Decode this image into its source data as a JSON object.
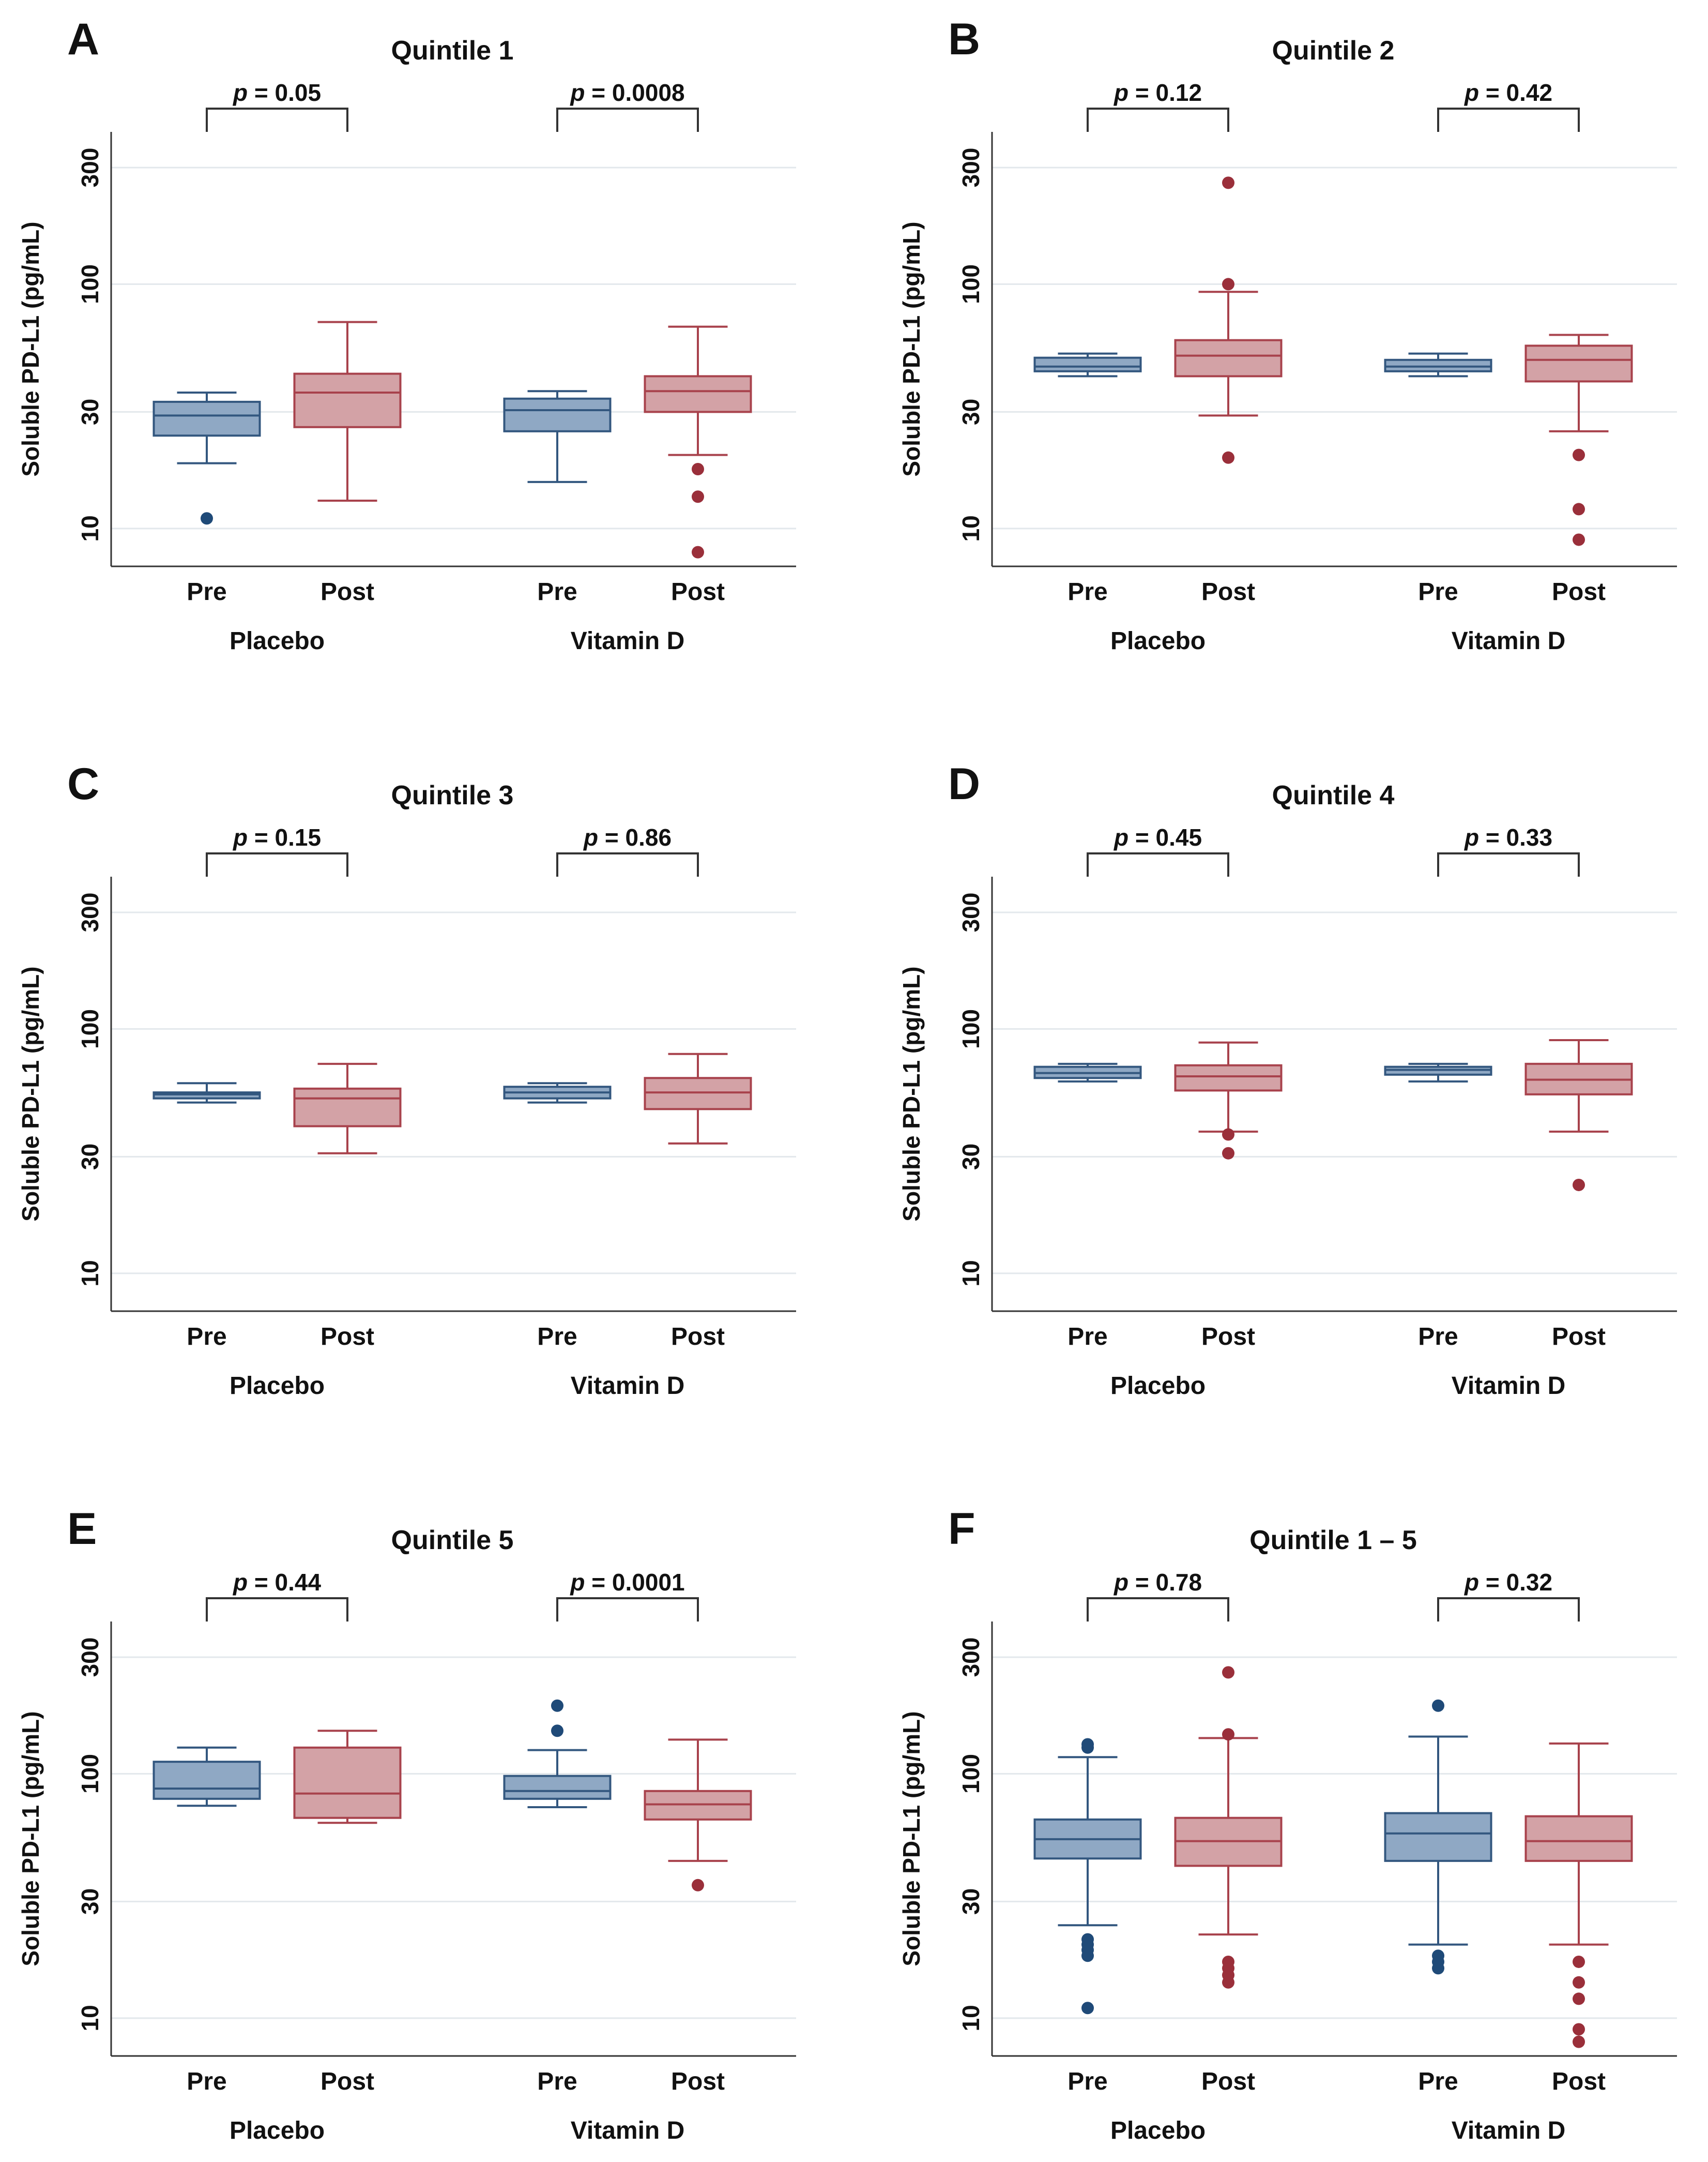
{
  "figure": {
    "ylabel": "Soluble PD-L1 (pg/mL)",
    "yticks": [
      10,
      30,
      100,
      300
    ],
    "colors": {
      "pre_fill": "#8fa8c4",
      "pre_line": "#33577f",
      "pre_point": "#1f4a78",
      "post_fill": "#d3a2a6",
      "post_line": "#a8424c",
      "post_point": "#9a2f3a"
    },
    "box_labels": [
      "Pre",
      "Post",
      "Pre",
      "Post"
    ],
    "group_labels": [
      "Placebo",
      "Vitamin D"
    ]
  },
  "chart_data": [
    {
      "type": "box",
      "panel_label": "A",
      "title": "Quintile 1",
      "ylabel": "Soluble PD-L1 (pg/mL)",
      "yscale": "log",
      "ylim": [
        7,
        420
      ],
      "categories": [
        "Pre",
        "Post",
        "Pre",
        "Post"
      ],
      "groups": [
        "Placebo",
        "Vitamin D"
      ],
      "comparisons": [
        {
          "text": "p = 0.05",
          "label": "p",
          "value": "= 0.05"
        },
        {
          "text": "p = 0.0008",
          "label": "p",
          "value": "= 0.0008"
        }
      ],
      "boxes": [
        {
          "group": "Placebo",
          "time": "Pre",
          "q1": 24,
          "median": 29,
          "q3": 33,
          "whisker_low": 18.5,
          "whisker_high": 36,
          "outliers": [
            11
          ]
        },
        {
          "group": "Placebo",
          "time": "Post",
          "q1": 26,
          "median": 36,
          "q3": 43,
          "whisker_low": 13,
          "whisker_high": 70,
          "outliers": []
        },
        {
          "group": "Vitamin D",
          "time": "Pre",
          "q1": 25,
          "median": 30.5,
          "q3": 34,
          "whisker_low": 15.5,
          "whisker_high": 36.5,
          "outliers": []
        },
        {
          "group": "Vitamin D",
          "time": "Post",
          "q1": 30,
          "median": 36.5,
          "q3": 42,
          "whisker_low": 20,
          "whisker_high": 67,
          "outliers": [
            17.5,
            13.5,
            8
          ]
        }
      ]
    },
    {
      "type": "box",
      "panel_label": "B",
      "title": "Quintile 2",
      "ylabel": "Soluble PD-L1 (pg/mL)",
      "yscale": "log",
      "ylim": [
        7,
        420
      ],
      "categories": [
        "Pre",
        "Post",
        "Pre",
        "Post"
      ],
      "groups": [
        "Placebo",
        "Vitamin D"
      ],
      "comparisons": [
        {
          "text": "p = 0.12",
          "label": "p",
          "value": "= 0.12"
        },
        {
          "text": "p = 0.42",
          "label": "p",
          "value": "= 0.42"
        }
      ],
      "boxes": [
        {
          "group": "Placebo",
          "time": "Pre",
          "q1": 44,
          "median": 46,
          "q3": 50,
          "whisker_low": 42,
          "whisker_high": 52,
          "outliers": []
        },
        {
          "group": "Placebo",
          "time": "Post",
          "q1": 42,
          "median": 51,
          "q3": 59,
          "whisker_low": 29,
          "whisker_high": 93,
          "outliers": [
            19.5,
            100,
            260
          ]
        },
        {
          "group": "Vitamin D",
          "time": "Pre",
          "q1": 44,
          "median": 46,
          "q3": 49,
          "whisker_low": 42,
          "whisker_high": 52,
          "outliers": []
        },
        {
          "group": "Vitamin D",
          "time": "Post",
          "q1": 40,
          "median": 49,
          "q3": 56,
          "whisker_low": 25,
          "whisker_high": 62,
          "outliers": [
            20,
            12,
            9
          ]
        }
      ]
    },
    {
      "type": "box",
      "panel_label": "C",
      "title": "Quintile 3",
      "ylabel": "Soluble PD-L1 (pg/mL)",
      "yscale": "log",
      "ylim": [
        7,
        420
      ],
      "categories": [
        "Pre",
        "Post",
        "Pre",
        "Post"
      ],
      "groups": [
        "Placebo",
        "Vitamin D"
      ],
      "comparisons": [
        {
          "text": "p = 0.15",
          "label": "p",
          "value": "= 0.15"
        },
        {
          "text": "p = 0.86",
          "label": "p",
          "value": "= 0.86"
        }
      ],
      "boxes": [
        {
          "group": "Placebo",
          "time": "Pre",
          "q1": 52,
          "median": 54,
          "q3": 55,
          "whisker_low": 50,
          "whisker_high": 60,
          "outliers": []
        },
        {
          "group": "Placebo",
          "time": "Post",
          "q1": 40,
          "median": 52,
          "q3": 57,
          "whisker_low": 31,
          "whisker_high": 72,
          "outliers": []
        },
        {
          "group": "Vitamin D",
          "time": "Pre",
          "q1": 52,
          "median": 55,
          "q3": 58,
          "whisker_low": 50,
          "whisker_high": 60,
          "outliers": []
        },
        {
          "group": "Vitamin D",
          "time": "Post",
          "q1": 47,
          "median": 55,
          "q3": 63,
          "whisker_low": 34,
          "whisker_high": 79,
          "outliers": []
        }
      ]
    },
    {
      "type": "box",
      "panel_label": "D",
      "title": "Quintile 4",
      "ylabel": "Soluble PD-L1 (pg/mL)",
      "yscale": "log",
      "ylim": [
        7,
        420
      ],
      "categories": [
        "Pre",
        "Post",
        "Pre",
        "Post"
      ],
      "groups": [
        "Placebo",
        "Vitamin D"
      ],
      "comparisons": [
        {
          "text": "p = 0.45",
          "label": "p",
          "value": "= 0.45"
        },
        {
          "text": "p = 0.33",
          "label": "p",
          "value": "= 0.33"
        }
      ],
      "boxes": [
        {
          "group": "Placebo",
          "time": "Pre",
          "q1": 63,
          "median": 66,
          "q3": 70,
          "whisker_low": 61,
          "whisker_high": 72,
          "outliers": []
        },
        {
          "group": "Placebo",
          "time": "Post",
          "q1": 56,
          "median": 64,
          "q3": 71,
          "whisker_low": 38,
          "whisker_high": 88,
          "outliers": [
            37,
            31
          ]
        },
        {
          "group": "Vitamin D",
          "time": "Pre",
          "q1": 65,
          "median": 68,
          "q3": 70,
          "whisker_low": 61,
          "whisker_high": 72,
          "outliers": []
        },
        {
          "group": "Vitamin D",
          "time": "Post",
          "q1": 54,
          "median": 62,
          "q3": 72,
          "whisker_low": 38,
          "whisker_high": 90,
          "outliers": [
            23
          ]
        }
      ]
    },
    {
      "type": "box",
      "panel_label": "E",
      "title": "Quintile 5",
      "ylabel": "Soluble PD-L1 (pg/mL)",
      "yscale": "log",
      "ylim": [
        7,
        420
      ],
      "categories": [
        "Pre",
        "Post",
        "Pre",
        "Post"
      ],
      "groups": [
        "Placebo",
        "Vitamin D"
      ],
      "comparisons": [
        {
          "text": "p = 0.44",
          "label": "p",
          "value": "= 0.44"
        },
        {
          "text": "p = 0.0001",
          "label": "p",
          "value": "= 0.0001"
        }
      ],
      "boxes": [
        {
          "group": "Placebo",
          "time": "Pre",
          "q1": 79,
          "median": 87,
          "q3": 112,
          "whisker_low": 74,
          "whisker_high": 128,
          "outliers": []
        },
        {
          "group": "Placebo",
          "time": "Post",
          "q1": 66,
          "median": 83,
          "q3": 128,
          "whisker_low": 63,
          "whisker_high": 150,
          "outliers": []
        },
        {
          "group": "Vitamin D",
          "time": "Pre",
          "q1": 79,
          "median": 85,
          "q3": 98,
          "whisker_low": 73,
          "whisker_high": 125,
          "outliers": [
            150,
            190
          ]
        },
        {
          "group": "Vitamin D",
          "time": "Post",
          "q1": 65,
          "median": 75,
          "q3": 85,
          "whisker_low": 44,
          "whisker_high": 138,
          "outliers": [
            35
          ]
        }
      ]
    },
    {
      "type": "box",
      "panel_label": "F",
      "title": "Quintile 1 – 5",
      "ylabel": "Soluble PD-L1 (pg/mL)",
      "yscale": "log",
      "ylim": [
        7,
        420
      ],
      "categories": [
        "Pre",
        "Post",
        "Pre",
        "Post"
      ],
      "groups": [
        "Placebo",
        "Vitamin D"
      ],
      "comparisons": [
        {
          "text": "p = 0.78",
          "label": "p",
          "value": "= 0.78"
        },
        {
          "text": "p = 0.32",
          "label": "p",
          "value": "= 0.32"
        }
      ],
      "boxes": [
        {
          "group": "Placebo",
          "time": "Pre",
          "q1": 45,
          "median": 54,
          "q3": 65,
          "whisker_low": 24,
          "whisker_high": 117,
          "outliers": [
            11,
            18,
            19,
            20,
            21,
            128,
            132
          ]
        },
        {
          "group": "Placebo",
          "time": "Post",
          "q1": 42,
          "median": 53,
          "q3": 66,
          "whisker_low": 22,
          "whisker_high": 140,
          "outliers": [
            14,
            15,
            16,
            17,
            145,
            260
          ]
        },
        {
          "group": "Vitamin D",
          "time": "Pre",
          "q1": 44,
          "median": 57,
          "q3": 69,
          "whisker_low": 20,
          "whisker_high": 142,
          "outliers": [
            16,
            17,
            18,
            190
          ]
        },
        {
          "group": "Vitamin D",
          "time": "Post",
          "q1": 44,
          "median": 53,
          "q3": 67,
          "whisker_low": 20,
          "whisker_high": 133,
          "outliers": [
            8,
            9,
            12,
            14,
            17
          ]
        }
      ]
    }
  ]
}
